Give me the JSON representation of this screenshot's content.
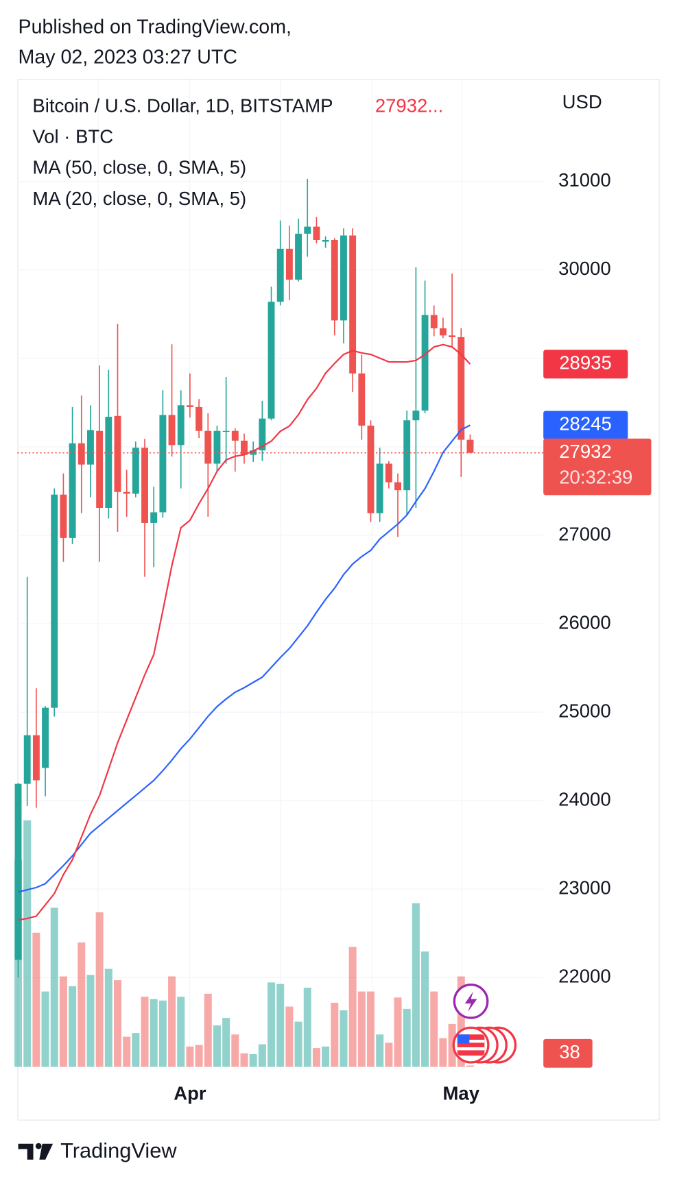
{
  "published": [
    "Published on TradingView.com,",
    "May 02, 2023 03:27 UTC"
  ],
  "footer": "TradingView",
  "chart_data": {
    "type": "candlestick",
    "title": "Bitcoin / U.S. Dollar, 1D, BITSTAMP",
    "legend_price": "27932...",
    "volume_title": "Vol · BTC",
    "currency": "USD",
    "countdown": "20:32:39",
    "categories": [
      null,
      null,
      null,
      null,
      null,
      null,
      null,
      null,
      null,
      null,
      null,
      null,
      null,
      null,
      null,
      null,
      null,
      null,
      null,
      "Apr",
      null,
      null,
      null,
      null,
      null,
      null,
      null,
      null,
      null,
      null,
      null,
      null,
      null,
      null,
      null,
      null,
      null,
      null,
      null,
      null,
      null,
      null,
      null,
      null,
      null,
      null,
      null,
      null,
      null,
      "May",
      null
    ],
    "open": [
      22200,
      24190,
      24740,
      24370,
      25050,
      27460,
      26970,
      28040,
      27800,
      28180,
      27310,
      28350,
      27490,
      27470,
      27990,
      27140,
      27260,
      28360,
      28020,
      28470,
      28450,
      28180,
      27810,
      28170,
      28180,
      28070,
      27910,
      27960,
      28320,
      29640,
      30240,
      29890,
      30410,
      30490,
      30320,
      30340,
      29430,
      30390,
      28830,
      28240,
      27250,
      27810,
      27600,
      27510,
      28300,
      28410,
      29490,
      29340,
      29260,
      29240,
      28080
    ],
    "high": [
      24200,
      26530,
      25270,
      25070,
      27530,
      27700,
      28450,
      28580,
      28470,
      28920,
      28870,
      29390,
      27740,
      28060,
      28090,
      27550,
      28640,
      29160,
      28640,
      28830,
      28540,
      28380,
      28240,
      28790,
      28210,
      28150,
      28060,
      28520,
      29810,
      30560,
      30500,
      30580,
      31030,
      30600,
      30380,
      30360,
      30470,
      30470,
      29040,
      28300,
      27990,
      27840,
      27700,
      28410,
      30030,
      29880,
      29600,
      29460,
      29960,
      29340,
      28140
    ],
    "low": [
      22000,
      23940,
      23920,
      24050,
      24950,
      26700,
      26900,
      27250,
      27430,
      26700,
      27190,
      27040,
      27210,
      27430,
      26530,
      26640,
      27200,
      27890,
      27530,
      28330,
      28100,
      27210,
      27720,
      27810,
      27720,
      27810,
      27830,
      27840,
      28300,
      29600,
      29660,
      29870,
      30150,
      30300,
      30250,
      29260,
      29170,
      28620,
      28080,
      27150,
      27150,
      27530,
      26980,
      27220,
      27310,
      28380,
      29250,
      29230,
      29120,
      27660,
      27930
    ],
    "close": [
      24190,
      24740,
      24230,
      25050,
      27460,
      26970,
      28040,
      27800,
      28190,
      27310,
      28340,
      27490,
      27470,
      27990,
      27140,
      27260,
      28360,
      28020,
      28470,
      28450,
      28180,
      27810,
      28180,
      28180,
      28070,
      27910,
      27960,
      28320,
      29640,
      30240,
      29890,
      30410,
      30490,
      30340,
      30340,
      29430,
      30390,
      28830,
      28240,
      27250,
      27810,
      27600,
      27510,
      28300,
      28410,
      29490,
      29340,
      29260,
      29240,
      28080,
      27932
    ],
    "volume": [
      5500,
      6540,
      3560,
      2000,
      4220,
      2400,
      2140,
      3300,
      2440,
      4100,
      2600,
      2300,
      800,
      900,
      1860,
      1800,
      1760,
      2400,
      1860,
      540,
      580,
      1940,
      1100,
      1300,
      860,
      360,
      340,
      600,
      2240,
      2200,
      1600,
      1200,
      2100,
      500,
      540,
      1700,
      1500,
      3180,
      2000,
      2000,
      860,
      640,
      1840,
      1540,
      4340,
      3060,
      2000,
      760,
      1140,
      2400,
      38
    ],
    "volume_ylim": [
      0,
      6540
    ],
    "up_color": "#26a69a",
    "down_color": "#ef5350",
    "series": [
      {
        "name": "MA (50, close, 0, SMA, 5)",
        "color": "#2962ff",
        "values": [
          22967,
          22992,
          23018,
          23061,
          23163,
          23265,
          23376,
          23504,
          23632,
          23717,
          23802,
          23888,
          23973,
          24058,
          24143,
          24229,
          24339,
          24459,
          24587,
          24697,
          24825,
          24953,
          25064,
          25149,
          25226,
          25277,
          25337,
          25396,
          25507,
          25618,
          25720,
          25848,
          25976,
          26130,
          26275,
          26402,
          26556,
          26675,
          26760,
          26829,
          26957,
          27042,
          27127,
          27229,
          27383,
          27528,
          27724,
          27937,
          28065,
          28193,
          28245
        ]
      },
      {
        "name": "MA (20, close, 0, SMA, 5)",
        "color": "#f23645",
        "values": [
          22651,
          22668,
          22694,
          22822,
          22950,
          23163,
          23333,
          23589,
          23845,
          24058,
          24356,
          24655,
          24911,
          25166,
          25422,
          25652,
          26147,
          26658,
          27085,
          27170,
          27357,
          27528,
          27724,
          27852,
          27894,
          27911,
          27954,
          28005,
          28065,
          28176,
          28235,
          28363,
          28534,
          28662,
          28832,
          28943,
          29045,
          29088,
          29062,
          29045,
          29003,
          28960,
          28960,
          28960,
          28977,
          29045,
          29130,
          29156,
          29130,
          29045,
          28935
        ]
      }
    ],
    "ylim": [
      20990,
      32157
    ],
    "yticks": [
      22000,
      23000,
      24000,
      25000,
      26000,
      27000,
      28000,
      29000,
      30000,
      31000
    ],
    "grid": true
  }
}
